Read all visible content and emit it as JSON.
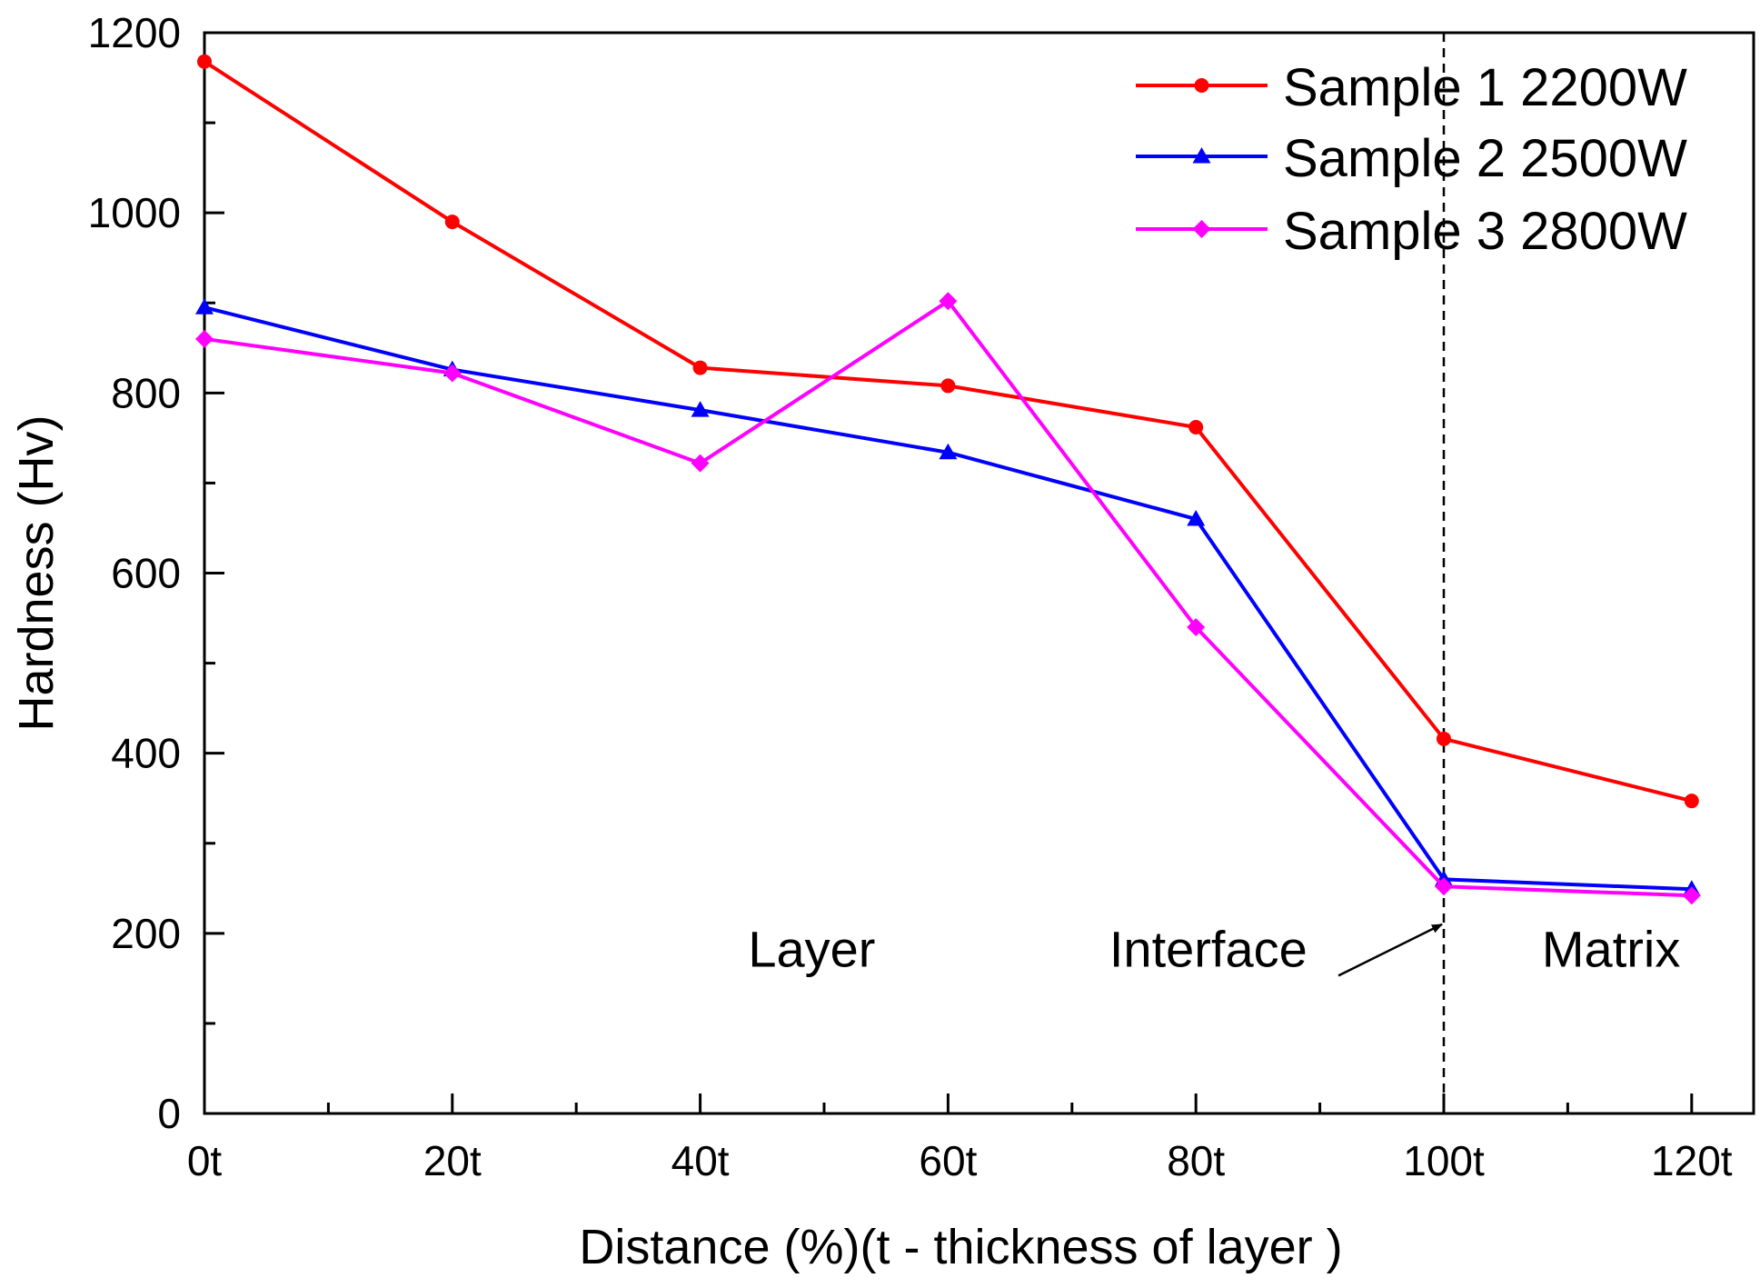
{
  "chart_data": {
    "type": "line",
    "title": "",
    "xlabel": "Distance (%)(t - thickness of layer )",
    "ylabel": "Hardness (Hv)",
    "xlim": [
      0,
      125
    ],
    "ylim": [
      0,
      1200
    ],
    "x_ticks": [
      {
        "value": 0,
        "label": "0t"
      },
      {
        "value": 20,
        "label": "20t"
      },
      {
        "value": 40,
        "label": "40t"
      },
      {
        "value": 60,
        "label": "60t"
      },
      {
        "value": 80,
        "label": "80t"
      },
      {
        "value": 100,
        "label": "100t"
      },
      {
        "value": 120,
        "label": "120t"
      }
    ],
    "x_minor_ticks": [
      10,
      30,
      50,
      70,
      90,
      110
    ],
    "y_ticks": [
      {
        "value": 0,
        "label": "0"
      },
      {
        "value": 200,
        "label": "200"
      },
      {
        "value": 400,
        "label": "400"
      },
      {
        "value": 600,
        "label": "600"
      },
      {
        "value": 800,
        "label": "800"
      },
      {
        "value": 1000,
        "label": "1000"
      },
      {
        "value": 1200,
        "label": "1200"
      }
    ],
    "y_minor_ticks": [
      100,
      300,
      500,
      700,
      900,
      1100
    ],
    "x": [
      0,
      20,
      40,
      60,
      80,
      100,
      120
    ],
    "series": [
      {
        "name": "Sample 1 2200W",
        "color": "#ff0000",
        "marker": "circle",
        "values": [
          1168,
          990,
          828,
          808,
          762,
          416,
          347
        ]
      },
      {
        "name": "Sample 2 2500W",
        "color": "#0000ff",
        "marker": "triangle",
        "values": [
          895,
          826,
          781,
          734,
          660,
          260,
          249
        ]
      },
      {
        "name": "Sample 3 2800W",
        "color": "#ff00ff",
        "marker": "diamond",
        "values": [
          860,
          822,
          722,
          902,
          540,
          252,
          242
        ]
      }
    ],
    "legend_position": "top-right",
    "annotations": [
      {
        "text": "Layer",
        "x": 49,
        "y": 163
      },
      {
        "text": "Interface",
        "x": 81,
        "y": 163
      },
      {
        "text": "Matrix",
        "x": 113.5,
        "y": 163
      }
    ],
    "reference_line": {
      "x": 100,
      "style": "dashed"
    },
    "arrow": {
      "from": [
        91.5,
        153
      ],
      "to": [
        100,
        210
      ]
    }
  }
}
